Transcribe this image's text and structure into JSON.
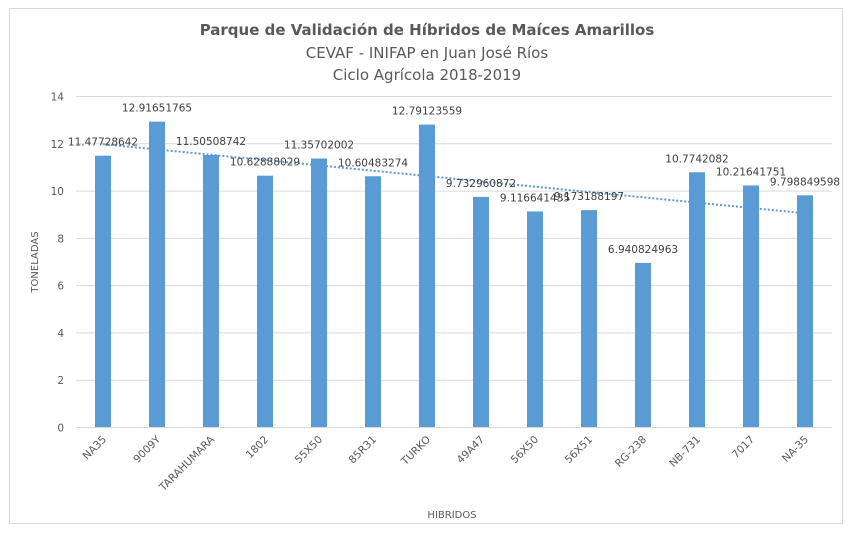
{
  "chart_data": {
    "type": "bar",
    "title": "Parque de Validación de Híbridos de Maíces Amarillos",
    "subtitle_lines": [
      "CEVAF - INIFAP en Juan José Ríos",
      "Ciclo Agrícola 2018-2019"
    ],
    "xlabel": "HIBRIDOS",
    "ylabel": "TONELADAS",
    "ylim": [
      0,
      14
    ],
    "yticks": [
      0,
      2,
      4,
      6,
      8,
      10,
      12,
      14
    ],
    "grid": true,
    "legend": "none",
    "categories": [
      "NA35",
      "9009Y",
      "TARAHUMARA",
      "1802",
      "55X50",
      "85R31",
      "TURKO",
      "49A47",
      "56X50",
      "56X51",
      "RG-238",
      "NB-731",
      "7017",
      "NA-35"
    ],
    "values": [
      11.47728642,
      12.91651765,
      11.50508742,
      10.62888029,
      11.35702002,
      10.60483274,
      12.79123559,
      9.732960872,
      9.116641435,
      9.173188197,
      6.940824963,
      10.7742082,
      10.21641751,
      9.798849598
    ],
    "data_labels": [
      "11.47728642",
      "12.91651765",
      "11.50508742",
      "10.62888029",
      "11.35702002",
      "10.60483274",
      "12.79123559",
      "9.732960872",
      "9.116641435",
      "9.173188197",
      "6.940824963",
      "10.7742082",
      "10.21641751",
      "9.798849598"
    ],
    "trendline": {
      "type": "linear",
      "style": "dotted"
    },
    "colors": {
      "bar": "#5b9bd5",
      "trend": "#5b9bd5",
      "grid": "#d9d9d9",
      "text": "#595959"
    }
  }
}
